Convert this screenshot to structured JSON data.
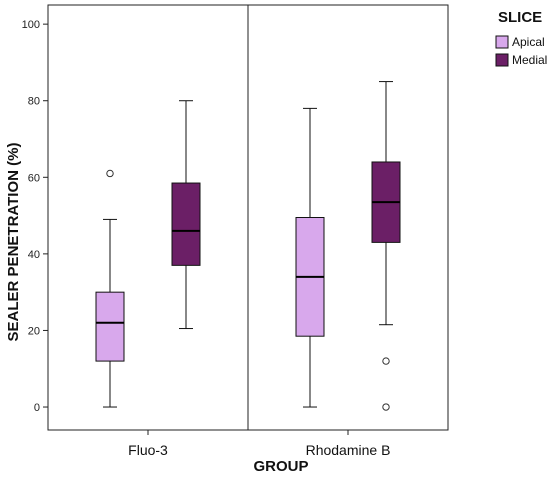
{
  "chart_data": {
    "type": "box",
    "xlabel": "GROUP",
    "ylabel": "SEALER PENETRATION (%)",
    "ylim": [
      -6,
      105
    ],
    "yticks": [
      0,
      20,
      40,
      60,
      80,
      100
    ],
    "ytick_labels": [
      "0",
      "20",
      "40",
      "60",
      "80",
      "100"
    ],
    "grid": false,
    "legend_position": "top-right",
    "legend_title": "SLICE",
    "categories": [
      "Fluo-3",
      "Rhodamine B"
    ],
    "series": [
      {
        "name": "Apical",
        "color": "#d8a8ec",
        "boxes": [
          {
            "min": 0,
            "q1": 12,
            "median": 22,
            "q3": 30,
            "max": 49,
            "outliers": [
              61
            ]
          },
          {
            "min": 0,
            "q1": 18.5,
            "median": 34,
            "q3": 49.5,
            "max": 78,
            "outliers": []
          }
        ]
      },
      {
        "name": "Medial",
        "color": "#6b1f66",
        "boxes": [
          {
            "min": 20.5,
            "q1": 37,
            "median": 46,
            "q3": 58.5,
            "max": 80,
            "outliers": []
          },
          {
            "min": 21.5,
            "q1": 43,
            "median": 53.5,
            "q3": 64,
            "max": 85,
            "outliers": [
              12,
              0
            ]
          }
        ]
      }
    ]
  }
}
